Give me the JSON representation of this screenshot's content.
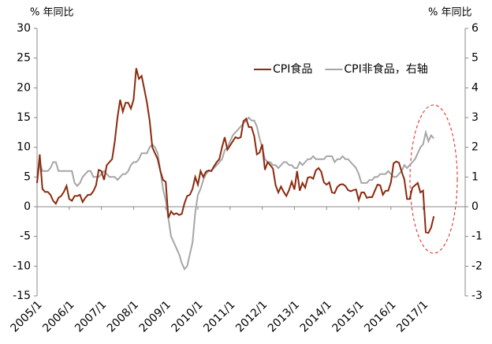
{
  "chart_data": {
    "type": "line",
    "y_label": "% 年同比",
    "y2_label": "% 年同比",
    "categories": [
      "2005/1",
      null,
      null,
      null,
      null,
      null,
      null,
      null,
      null,
      null,
      null,
      null,
      "2006/1",
      null,
      null,
      null,
      null,
      null,
      null,
      null,
      null,
      null,
      null,
      null,
      "2007/1",
      null,
      null,
      null,
      null,
      null,
      null,
      null,
      null,
      null,
      null,
      null,
      "2008/1",
      null,
      null,
      null,
      null,
      null,
      null,
      null,
      null,
      null,
      null,
      null,
      "2009/1",
      null,
      null,
      null,
      null,
      null,
      null,
      null,
      null,
      null,
      null,
      null,
      "2010/1",
      null,
      null,
      null,
      null,
      null,
      null,
      null,
      null,
      null,
      null,
      null,
      "2011/1",
      null,
      null,
      null,
      null,
      null,
      null,
      null,
      null,
      null,
      null,
      null,
      "2012/1",
      null,
      null,
      null,
      null,
      null,
      null,
      null,
      null,
      null,
      null,
      null,
      "2013/1",
      null,
      null,
      null,
      null,
      null,
      null,
      null,
      null,
      null,
      null,
      null,
      "2014/1",
      null,
      null,
      null,
      null,
      null,
      null,
      null,
      null,
      null,
      null,
      null,
      "2015/1",
      null,
      null,
      null,
      null,
      null,
      null,
      null,
      null,
      null,
      null,
      null,
      "2016/1",
      null,
      null,
      null,
      null,
      null,
      null,
      null,
      null,
      null,
      null,
      null,
      "2017/1",
      null,
      null,
      null,
      null
    ],
    "series": [
      {
        "name": "CPI食品",
        "color": "#8b2a0e",
        "values": [
          4,
          8.8,
          3,
          2.5,
          2.5,
          2,
          1,
          0.5,
          1.5,
          1.8,
          2.5,
          3.5,
          1.3,
          1,
          1.8,
          1.8,
          2,
          0.8,
          1.5,
          2,
          2,
          2.6,
          3.6,
          6.2,
          6,
          4.5,
          7,
          7.5,
          8,
          11,
          15,
          18,
          16,
          17.5,
          17.5,
          16.5,
          18,
          23.3,
          21.5,
          22,
          19.8,
          17.5,
          14.5,
          10,
          9,
          8,
          6,
          4.5,
          4.2,
          -1.9,
          -0.8,
          -1.3,
          -1.1,
          -1.4,
          -1.2,
          0.6,
          1.8,
          2,
          3,
          5,
          3.7,
          6,
          5,
          5.9,
          6.1,
          6,
          6.8,
          7.5,
          8,
          10,
          11.7,
          9.6,
          10.3,
          11,
          11.7,
          11.5,
          11.7,
          14.4,
          14.8,
          13.4,
          13.4,
          11.9,
          8.8,
          9.1,
          10.5,
          6.2,
          7.5,
          7,
          6.4,
          3.6,
          2.4,
          3.4,
          2.5,
          1.8,
          2.8,
          4.2,
          2.9,
          6,
          2.7,
          4,
          3.2,
          4.9,
          5,
          4.7,
          6.1,
          6.5,
          5.9,
          4.1,
          3.7,
          4.1,
          2.4,
          2.3,
          3.3,
          3.7,
          3.8,
          3.5,
          2.8,
          2.6,
          2.8,
          2.9,
          1.1,
          2.4,
          2.4,
          1.5,
          1.6,
          1.6,
          2.7,
          3.7,
          3.6,
          2,
          2.7,
          2.7,
          4.1,
          7.3,
          7.6,
          7.4,
          5.9,
          4.6,
          1.3,
          1.3,
          3.2,
          3.6,
          4,
          2.4,
          2.7,
          -4.3,
          -4.4,
          -3.5,
          -1.6
        ]
      },
      {
        "name": "CPI非食品，右轴",
        "color": "#a6a6a6",
        "axis": "y2",
        "values": [
          0.8,
          1.5,
          1.2,
          1.2,
          1.2,
          1.3,
          1.5,
          1.5,
          1.2,
          1.2,
          1.2,
          1.2,
          1.2,
          1.2,
          0.8,
          0.7,
          0.8,
          1,
          1.1,
          1.2,
          1.2,
          1,
          1,
          1,
          1.1,
          1.2,
          1.1,
          1,
          1,
          1,
          0.9,
          1,
          1.1,
          1.1,
          1.2,
          1.4,
          1.5,
          1.5,
          1.6,
          1.8,
          1.8,
          1.8,
          2,
          2.1,
          2,
          1.8,
          1.2,
          0.6,
          0.2,
          -0.4,
          -1,
          -1.2,
          -1.4,
          -1.6,
          -1.9,
          -2.1,
          -2,
          -1.6,
          -1.2,
          -0.2,
          0.4,
          0.6,
          0.9,
          1.1,
          1.2,
          1.2,
          1.3,
          1.4,
          1.5,
          1.6,
          1.9,
          2,
          2.2,
          2.4,
          2.5,
          2.6,
          2.7,
          2.8,
          2.9,
          3,
          2.9,
          2.9,
          2.7,
          2.3,
          2,
          1.6,
          1.5,
          1.5,
          1.4,
          1.4,
          1.3,
          1.4,
          1.5,
          1.5,
          1.4,
          1.4,
          1.3,
          1.3,
          1.5,
          1.4,
          1.5,
          1.6,
          1.6,
          1.7,
          1.6,
          1.6,
          1.6,
          1.6,
          1.7,
          1.7,
          1.7,
          1.5,
          1.6,
          1.6,
          1.7,
          1.6,
          1.6,
          1.5,
          1.4,
          1.3,
          1.1,
          0.8,
          0.8,
          0.8,
          0.9,
          0.9,
          1,
          1,
          1.1,
          1.1,
          1.1,
          1.2,
          1.1,
          1,
          1,
          1.1,
          1.2,
          1.4,
          1.3,
          1.4,
          1.5,
          1.6,
          1.8,
          2,
          2.1,
          2.5,
          2.2,
          2.4,
          2.3
        ]
      }
    ],
    "ylim": [
      -15,
      30
    ],
    "yticks": [
      -15,
      -10,
      -5,
      0,
      5,
      10,
      15,
      20,
      25,
      30
    ],
    "y2lim": [
      -3,
      6
    ],
    "y2ticks": [
      -3,
      -2,
      -1,
      0,
      1,
      2,
      3,
      4,
      5,
      6
    ],
    "grid": false
  }
}
